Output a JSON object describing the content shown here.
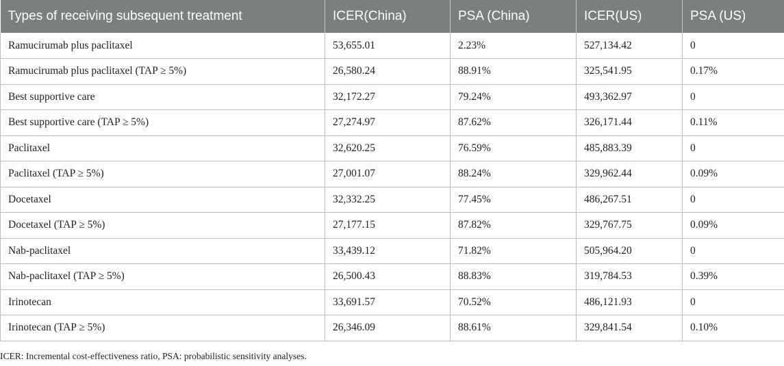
{
  "table": {
    "headers": [
      "Types of receiving subsequent treatment",
      "ICER(China)",
      "PSA (China)",
      "ICER(US)",
      "PSA (US)"
    ],
    "rows": [
      [
        "Ramucirumab plus paclitaxel",
        "53,655.01",
        "2.23%",
        "527,134.42",
        "0"
      ],
      [
        "Ramucirumab plus paclitaxel (TAP ≥ 5%)",
        "26,580.24",
        "88.91%",
        "325,541.95",
        "0.17%"
      ],
      [
        "Best supportive care",
        "32,172.27",
        "79.24%",
        "493,362.97",
        "0"
      ],
      [
        "Best supportive care (TAP ≥ 5%)",
        "27,274.97",
        "87.62%",
        "326,171.44",
        "0.11%"
      ],
      [
        "Paclitaxel",
        "32,620.25",
        "76.59%",
        "485,883.39",
        "0"
      ],
      [
        "Paclitaxel (TAP ≥ 5%)",
        "27,001.07",
        "88.24%",
        "329,962.44",
        "0.09%"
      ],
      [
        "Docetaxel",
        "32,332.25",
        "77.45%",
        "486,267.51",
        "0"
      ],
      [
        "Docetaxel (TAP ≥ 5%)",
        "27,177.15",
        "87.82%",
        "329,767.75",
        "0.09%"
      ],
      [
        "Nab-paclitaxel",
        "33,439.12",
        "71.82%",
        "505,964.20",
        "0"
      ],
      [
        "Nab-paclitaxel (TAP ≥ 5%)",
        "26,500.43",
        "88.83%",
        "319,784.53",
        "0.39%"
      ],
      [
        "Irinotecan",
        "33,691.57",
        "70.52%",
        "486,121.93",
        "0"
      ],
      [
        "Irinotecan (TAP ≥ 5%)",
        "26,346.09",
        "88.61%",
        "329,841.54",
        "0.10%"
      ]
    ]
  },
  "footnote": "ICER: Incremental cost-effectiveness ratio, PSA: probabilistic sensitivity analyses.",
  "colors": {
    "header_background": "#7b7f80",
    "header_text": "#ffffff",
    "grid_line": "#bdbdbd"
  }
}
